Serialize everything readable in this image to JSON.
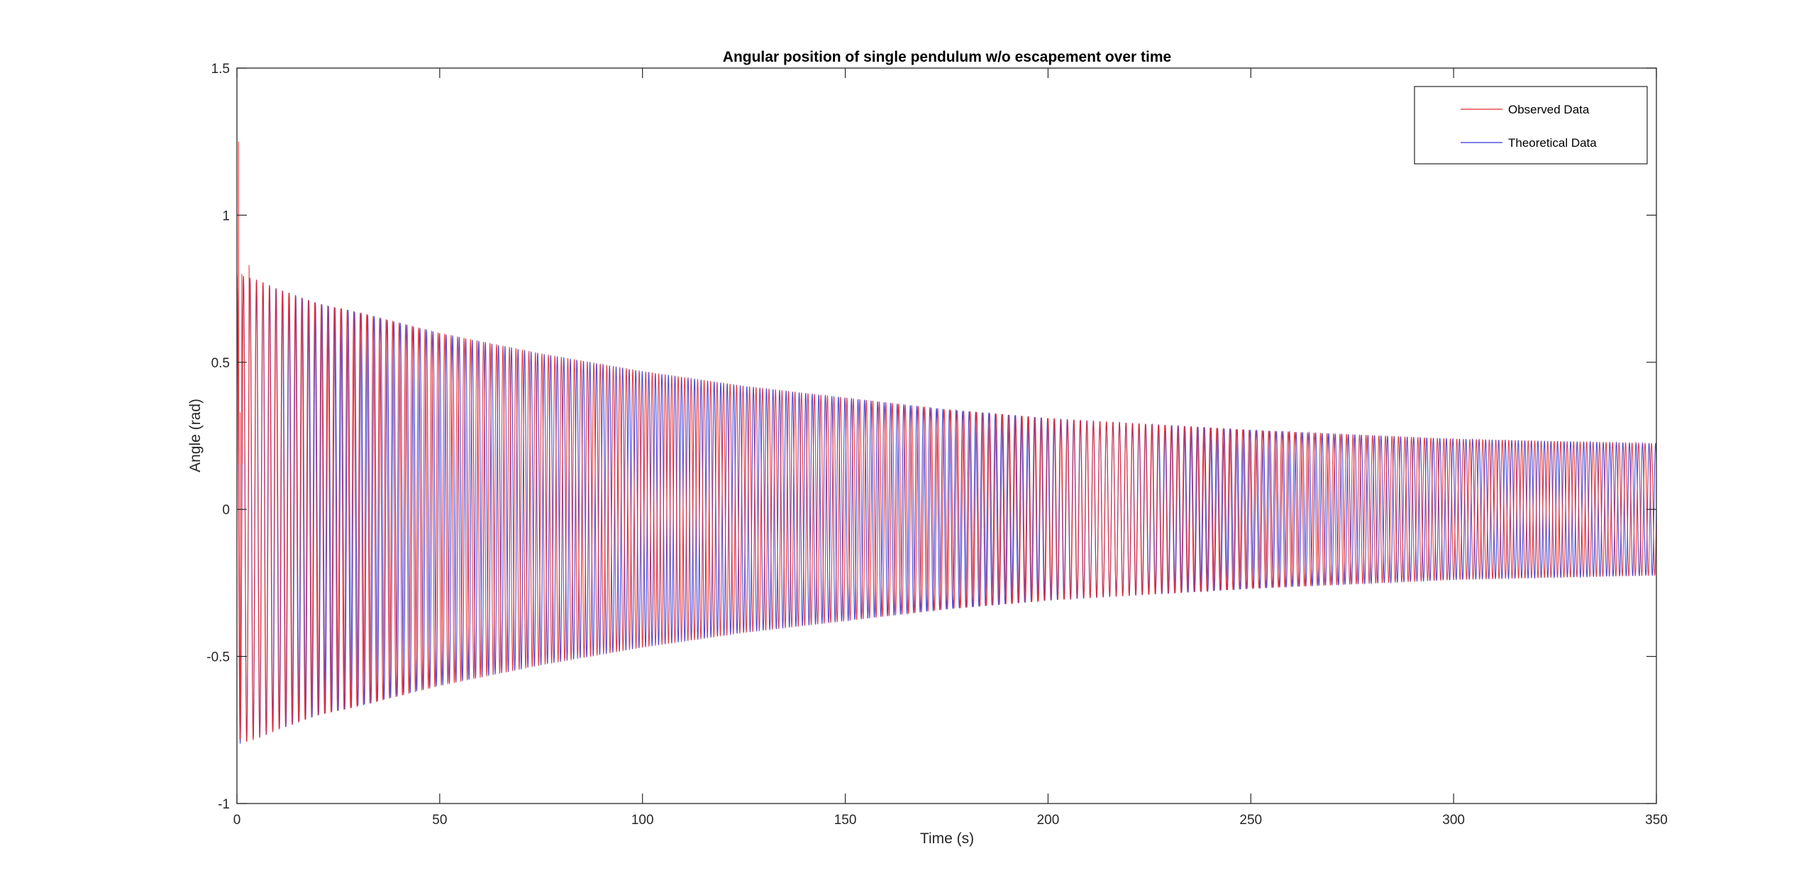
{
  "chart_data": {
    "type": "line",
    "title": "Angular position of single pendulum w/o escapement over time",
    "xlabel": "Time (s)",
    "ylabel": "Angle (rad)",
    "xlim": [
      0,
      350
    ],
    "ylim": [
      -1,
      1.5
    ],
    "x_ticks": [
      0,
      50,
      100,
      150,
      200,
      250,
      300,
      350
    ],
    "x_tick_labels": [
      "0",
      "50",
      "100",
      "150",
      "200",
      "250",
      "300",
      "350"
    ],
    "y_ticks": [
      -1,
      -0.5,
      0,
      0.5,
      1,
      1.5
    ],
    "y_tick_labels": [
      "-1",
      "-0.5",
      "0",
      "0.5",
      "1",
      "1.5"
    ],
    "grid": false,
    "legend_position": "top-right",
    "series": [
      {
        "name": "Observed Data",
        "color": "#e8262b",
        "envelope": {
          "x": [
            0,
            5,
            10,
            20,
            30,
            50,
            75,
            100,
            125,
            150,
            175,
            200,
            225,
            250,
            275,
            300,
            325,
            350
          ],
          "amplitude": [
            0.8,
            0.78,
            0.75,
            0.7,
            0.67,
            0.6,
            0.53,
            0.47,
            0.42,
            0.38,
            0.34,
            0.31,
            0.29,
            0.27,
            0.255,
            0.24,
            0.232,
            0.225
          ]
        },
        "initial_spike": {
          "x": [
            0.4,
            0.8,
            1.2,
            3.0
          ],
          "y": [
            1.25,
            0.33,
            0.8,
            0.83
          ]
        },
        "period_s": 1.6
      },
      {
        "name": "Theoretical Data",
        "color": "#3535d8",
        "envelope": {
          "x": [
            0,
            5,
            10,
            20,
            30,
            50,
            75,
            100,
            125,
            150,
            175,
            200,
            225,
            250,
            275,
            300,
            325,
            350
          ],
          "amplitude": [
            0.8,
            0.78,
            0.75,
            0.7,
            0.67,
            0.6,
            0.53,
            0.47,
            0.42,
            0.38,
            0.34,
            0.31,
            0.29,
            0.27,
            0.255,
            0.24,
            0.232,
            0.225
          ]
        },
        "period_s": 1.612
      }
    ]
  }
}
